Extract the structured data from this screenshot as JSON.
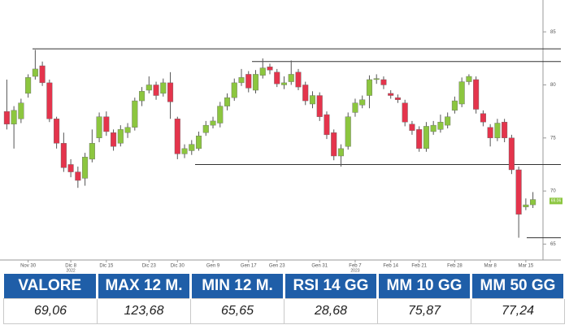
{
  "chart_data": {
    "type": "candlestick",
    "categories": [
      null,
      null,
      null,
      "Nov 30",
      null,
      null,
      null,
      null,
      null,
      "Dic 8",
      null,
      null,
      null,
      null,
      "Dic 15",
      null,
      null,
      null,
      null,
      null,
      "Dic 23",
      null,
      null,
      null,
      "Dic 30",
      null,
      null,
      null,
      null,
      "Gen 9",
      null,
      null,
      null,
      null,
      "Gen 17",
      null,
      null,
      null,
      "Gen 23",
      null,
      null,
      null,
      null,
      null,
      "Gen 31",
      null,
      null,
      null,
      null,
      "Feb 7",
      null,
      null,
      null,
      null,
      "Feb 14",
      null,
      null,
      null,
      "Feb 21",
      null,
      null,
      null,
      null,
      "Feb 28",
      null,
      null,
      null,
      null,
      "Mar 8",
      null,
      null,
      null,
      null,
      "Mar 15",
      null
    ],
    "open": [
      77.5,
      76.3,
      76.8,
      79.2,
      80.8,
      81.8,
      80.2,
      76.8,
      74.5,
      72.5,
      71.8,
      71.2,
      73.0,
      75.0,
      77.0,
      75.5,
      74.5,
      75.5,
      76.0,
      78.5,
      79.5,
      80.0,
      79.2,
      80.2,
      76.8,
      73.5,
      73.8,
      74.0,
      75.5,
      76.2,
      76.4,
      78.0,
      78.8,
      80.2,
      81.0,
      79.5,
      80.9,
      81.7,
      81.2,
      80.0,
      80.3,
      81.2,
      80.0,
      78.2,
      79.0,
      77.2,
      75.5,
      73.3,
      74.2,
      77.4,
      78.1,
      79.0,
      80.5,
      80.5,
      79.2,
      78.8,
      78.3,
      76.3,
      75.8,
      74.0,
      75.6,
      75.8,
      76.2,
      77.6,
      78.2,
      80.3,
      80.5,
      77.3,
      76.0,
      75.0,
      76.5,
      75.0,
      72.0,
      68.5,
      68.7
    ],
    "high": [
      80.5,
      78.0,
      78.7,
      81.0,
      83.3,
      82.2,
      80.5,
      77.0,
      75.5,
      73.0,
      72.3,
      73.6,
      75.8,
      77.4,
      77.5,
      75.8,
      76.2,
      76.4,
      78.8,
      79.8,
      80.8,
      80.3,
      80.6,
      81.2,
      77.0,
      74.4,
      74.8,
      75.6,
      76.6,
      77.0,
      78.4,
      79.2,
      80.6,
      81.5,
      81.3,
      81.4,
      82.5,
      82.0,
      81.5,
      80.8,
      82.3,
      81.5,
      80.3,
      79.4,
      79.3,
      77.5,
      75.8,
      74.4,
      77.4,
      78.7,
      79.0,
      80.9,
      81.0,
      80.8,
      79.5,
      79.1,
      78.6,
      76.6,
      76.1,
      76.5,
      76.6,
      77.2,
      77.4,
      78.9,
      80.7,
      81.0,
      80.8,
      77.6,
      76.3,
      76.8,
      76.8,
      75.3,
      72.3,
      69.3,
      69.9
    ],
    "low": [
      75.8,
      74.0,
      76.4,
      78.8,
      80.5,
      79.9,
      76.5,
      74.0,
      71.8,
      71.3,
      70.3,
      70.5,
      72.7,
      74.6,
      75.2,
      73.8,
      74.2,
      75.0,
      75.7,
      78.0,
      79.2,
      78.6,
      78.9,
      76.8,
      73.0,
      73.1,
      73.4,
      73.8,
      75.2,
      75.9,
      76.0,
      77.6,
      78.5,
      79.9,
      79.3,
      79.2,
      80.6,
      81.0,
      79.8,
      79.6,
      80.0,
      79.5,
      78.1,
      77.8,
      76.6,
      74.9,
      72.9,
      72.3,
      73.9,
      77.0,
      77.8,
      77.8,
      80.1,
      79.6,
      78.7,
      78.3,
      76.1,
      75.3,
      73.7,
      73.7,
      75.3,
      75.5,
      75.9,
      77.3,
      77.9,
      80.0,
      77.3,
      76.1,
      74.2,
      74.7,
      74.6,
      71.6,
      65.6,
      68.2,
      68.4
    ],
    "close": [
      76.3,
      77.6,
      78.3,
      80.7,
      81.5,
      80.2,
      76.8,
      74.5,
      72.2,
      71.8,
      71.0,
      73.2,
      74.5,
      77.0,
      75.6,
      74.2,
      75.8,
      76.0,
      78.5,
      79.4,
      80.0,
      79.0,
      80.2,
      78.4,
      73.5,
      74.0,
      74.4,
      75.2,
      76.2,
      76.6,
      78.0,
      78.8,
      80.2,
      80.7,
      79.7,
      81.0,
      81.6,
      81.4,
      80.1,
      80.2,
      81.0,
      79.8,
      78.5,
      79.0,
      77.0,
      75.3,
      73.3,
      74.0,
      77.0,
      78.3,
      78.6,
      80.5,
      80.6,
      80.0,
      79.0,
      78.6,
      76.5,
      75.7,
      74.0,
      76.1,
      76.2,
      76.5,
      77.0,
      78.5,
      80.3,
      80.8,
      77.7,
      76.5,
      75.0,
      76.4,
      75.0,
      72.0,
      67.8,
      68.7,
      69.2
    ],
    "up_color": "#8cc63f",
    "down_color": "#e4344c",
    "ylim": [
      63.5,
      88
    ],
    "yticks": [
      65,
      70,
      75,
      80,
      85
    ],
    "levels": [
      83.4,
      82.2,
      72.5,
      65.6
    ],
    "year_labels": [
      "2022",
      "2023"
    ],
    "last_price": {
      "value": 69.06,
      "label": "69.06"
    }
  },
  "table": {
    "headers": [
      "VALORE",
      "MAX 12 M.",
      "MIN 12 M.",
      "RSI 14 GG",
      "MM 10 GG",
      "MM 50 GG"
    ],
    "rows": [
      [
        "69,06",
        "123,68",
        "65,65",
        "28,68",
        "75,87",
        "77,24"
      ]
    ]
  }
}
